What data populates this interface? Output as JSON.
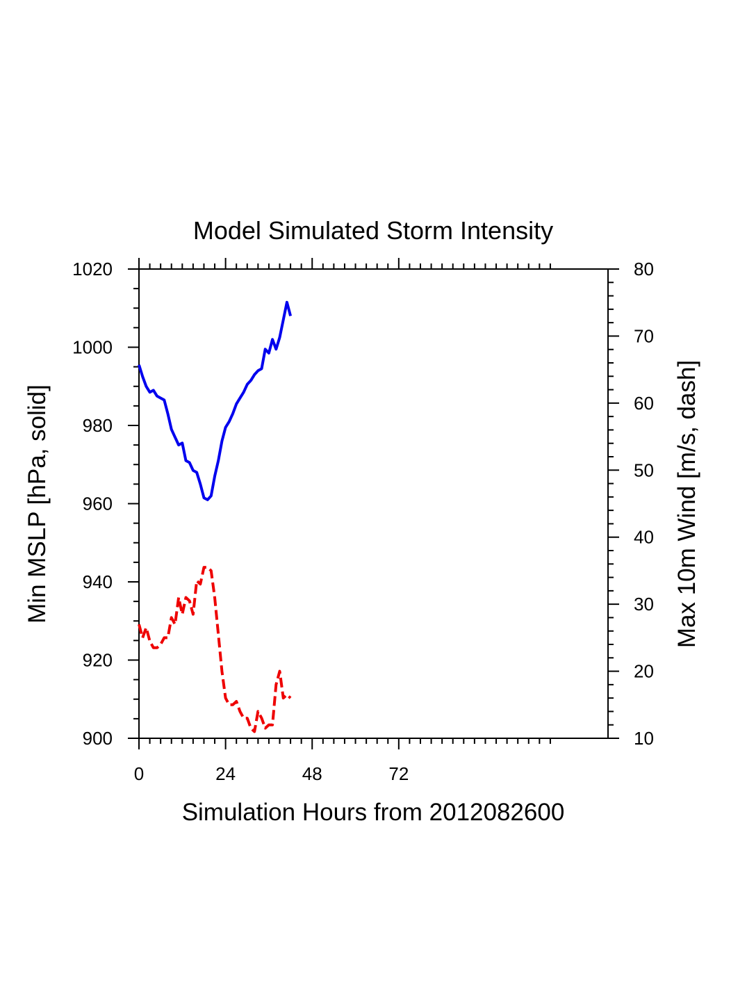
{
  "chart_data": {
    "type": "line",
    "title": "Model Simulated Storm Intensity",
    "xlabel": "Simulation Hours from 2012082600",
    "ylabel_left": "Min MSLP  [hPa, solid]",
    "ylabel_right": "Max 10m Wind  [m/s, dash]",
    "xlim": [
      0,
      130
    ],
    "ylim_left": [
      900,
      1020
    ],
    "ylim_right": [
      10,
      80
    ],
    "x_ticks": [
      0,
      24,
      48,
      72
    ],
    "y_ticks_left": [
      900,
      920,
      940,
      960,
      980,
      1000,
      1020
    ],
    "y_ticks_right": [
      10,
      20,
      30,
      40,
      50,
      60,
      70,
      80
    ],
    "grid": false,
    "legend": "none",
    "series": [
      {
        "name": "Min MSLP",
        "axis": "left",
        "color": "#0000ee",
        "style": "solid",
        "x": [
          0,
          1,
          2,
          3,
          4,
          5,
          6,
          7,
          8,
          9,
          10,
          11,
          12,
          13,
          14,
          15,
          16,
          17,
          18,
          19,
          20,
          21,
          22,
          23,
          24,
          25,
          26,
          27,
          28,
          29,
          30,
          31,
          32,
          33,
          34,
          35,
          36,
          37,
          38,
          39,
          40,
          41,
          42
        ],
        "y": [
          995.5,
          992.5,
          990,
          988.5,
          989,
          987.5,
          987,
          986.5,
          983,
          979,
          977,
          975,
          975.5,
          971,
          970.5,
          968.5,
          968,
          965,
          961.5,
          961,
          962,
          967,
          971,
          976,
          979.5,
          981,
          983,
          985.5,
          987,
          988.5,
          990.5,
          991.5,
          993,
          994,
          994.5,
          999.5,
          998.5,
          1002,
          999.5,
          1002.5,
          1007,
          1011.5,
          1008
        ]
      },
      {
        "name": "Max 10m Wind",
        "axis": "right",
        "color": "#ee0000",
        "style": "dashed",
        "x": [
          0,
          1,
          2,
          3,
          4,
          5,
          6,
          7,
          8,
          9,
          10,
          11,
          12,
          13,
          14,
          15,
          16,
          17,
          18,
          19,
          20,
          21,
          22,
          23,
          24,
          25,
          26,
          27,
          28,
          29,
          30,
          31,
          32,
          33,
          34,
          35,
          36,
          37,
          38,
          39,
          40,
          41,
          42
        ],
        "y": [
          27,
          25,
          26.5,
          24.5,
          23.5,
          23.5,
          24,
          25,
          25,
          28,
          27,
          31,
          28.5,
          31,
          30.5,
          28.5,
          33.5,
          33,
          35.5,
          35.5,
          35,
          31,
          25.5,
          20,
          16,
          15,
          15,
          15.5,
          14,
          13,
          13,
          11.5,
          11,
          14,
          13,
          11.5,
          12,
          12,
          18,
          20,
          16,
          16.5,
          16
        ]
      }
    ]
  }
}
